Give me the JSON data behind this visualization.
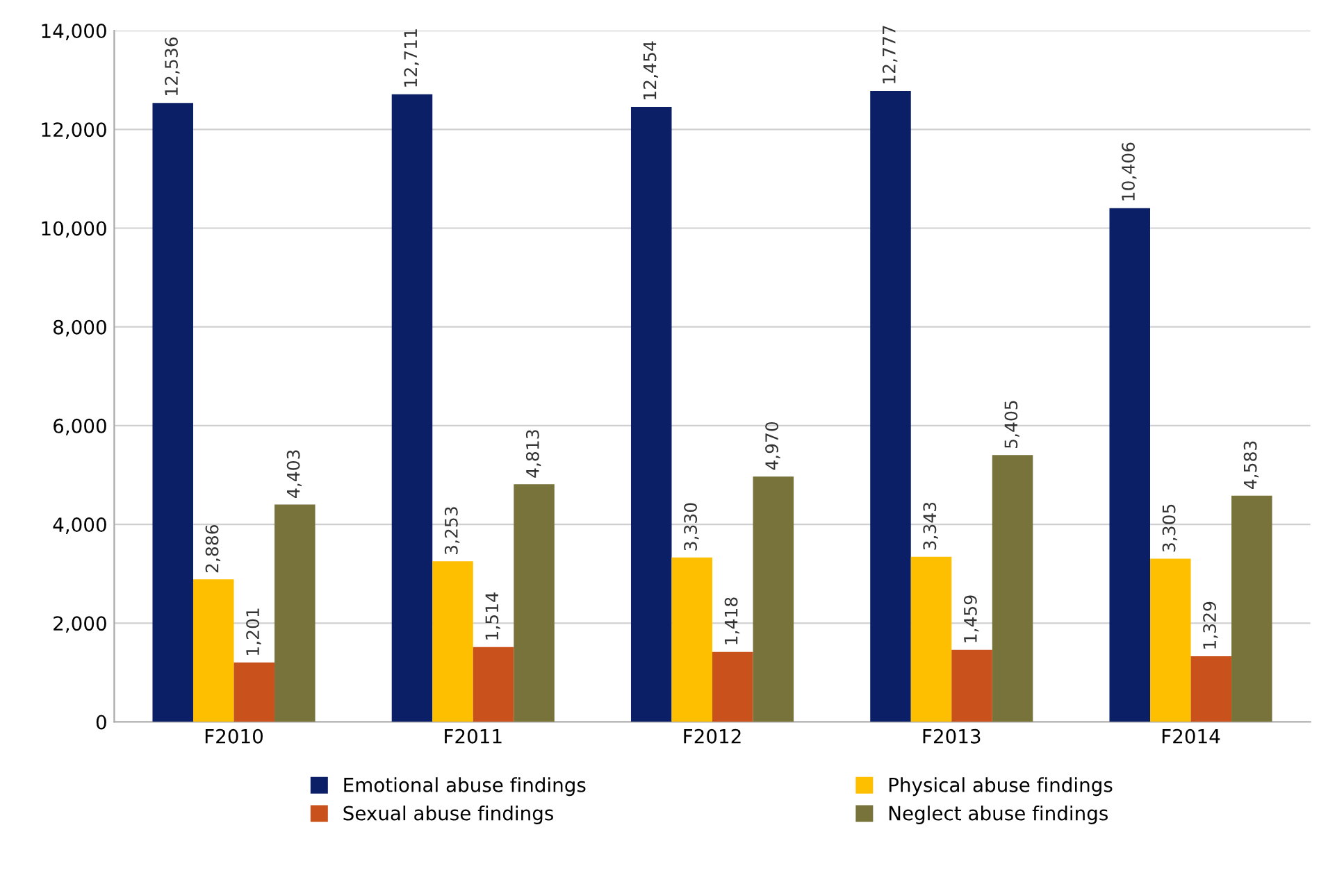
{
  "chart_data": {
    "type": "bar",
    "categories": [
      "F2010",
      "F2011",
      "F2012",
      "F2013",
      "F2014"
    ],
    "series": [
      {
        "name": "Emotional abuse findings",
        "color": "#0a1f66",
        "values": [
          12536,
          12711,
          12454,
          12777,
          10406
        ],
        "value_labels": [
          "12,536",
          "12,711",
          "12,454",
          "12,777",
          "10,406"
        ]
      },
      {
        "name": "Physical abuse findings",
        "color": "#fdbf00",
        "values": [
          2886,
          3253,
          3330,
          3343,
          3305
        ],
        "value_labels": [
          "2,886",
          "3,253",
          "3,330",
          "3,343",
          "3,305"
        ]
      },
      {
        "name": "Sexual abuse findings",
        "color": "#c9521c",
        "values": [
          1201,
          1514,
          1418,
          1459,
          1329
        ],
        "value_labels": [
          "1,201",
          "1,514",
          "1,418",
          "1,459",
          "1,329"
        ]
      },
      {
        "name": "Neglect abuse findings",
        "color": "#77733a",
        "values": [
          4403,
          4813,
          4970,
          5405,
          4583
        ],
        "value_labels": [
          "4,403",
          "4,813",
          "4,970",
          "5,405",
          "4,583"
        ]
      }
    ],
    "ylim": [
      0,
      14000
    ],
    "yticks": [
      {
        "value": 0,
        "label": "0"
      },
      {
        "value": 2000,
        "label": "2,000"
      },
      {
        "value": 4000,
        "label": "4,000"
      },
      {
        "value": 6000,
        "label": "6,000"
      },
      {
        "value": 8000,
        "label": "8,000"
      },
      {
        "value": 10000,
        "label": "10,000"
      },
      {
        "value": 12000,
        "label": "12,000"
      },
      {
        "value": 14000,
        "label": "14,000"
      }
    ],
    "grid": "y",
    "legend": "bottom"
  }
}
